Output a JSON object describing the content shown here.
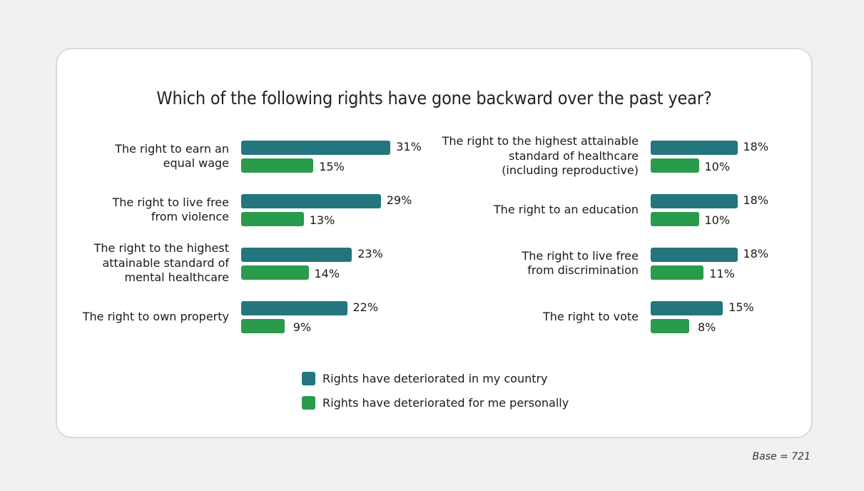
{
  "title": "Which of the following rights have gone backward over the past year?",
  "footnote": "Base = 721",
  "colors": {
    "country": "#23757e",
    "personal": "#2a9b4c",
    "background": "#f0f1f0",
    "card": "#ffffff"
  },
  "legend": [
    {
      "label": "Rights have deteriorated in my country",
      "color": "#23757e"
    },
    {
      "label": "Rights have deteriorated for me personally",
      "color": "#2a9b4c"
    }
  ],
  "columns": [
    {
      "items": [
        {
          "label_lines": [
            "The right to earn an",
            "equal wage"
          ],
          "country": 31,
          "personal": 15,
          "country_label": "31%",
          "personal_label": "15%"
        },
        {
          "label_lines": [
            "The right to live free",
            "from violence"
          ],
          "country": 29,
          "personal": 13,
          "country_label": "29%",
          "personal_label": "13%"
        },
        {
          "label_lines": [
            "The right to the highest",
            "attainable standard of",
            "mental healthcare"
          ],
          "country": 23,
          "personal": 14,
          "country_label": "23%",
          "personal_label": "14%"
        },
        {
          "label_lines": [
            "The right to own property"
          ],
          "country": 22,
          "personal": 9,
          "country_label": "22%",
          "personal_label": "9%"
        }
      ]
    },
    {
      "items": [
        {
          "label_lines": [
            "The right to the highest attainable",
            "standard of healthcare",
            "(including reproductive)"
          ],
          "country": 18,
          "personal": 10,
          "country_label": "18%",
          "personal_label": "10%"
        },
        {
          "label_lines": [
            "The right to an education"
          ],
          "country": 18,
          "personal": 10,
          "country_label": "18%",
          "personal_label": "10%"
        },
        {
          "label_lines": [
            "The right to live free",
            "from discrimination"
          ],
          "country": 18,
          "personal": 11,
          "country_label": "18%",
          "personal_label": "11%"
        },
        {
          "label_lines": [
            "The right to vote"
          ],
          "country": 15,
          "personal": 8,
          "country_label": "15%",
          "personal_label": "8%"
        }
      ]
    }
  ],
  "chart_data": {
    "type": "bar",
    "orientation": "horizontal",
    "title": "Which of the following rights have gone backward over the past year?",
    "xlabel": "",
    "ylabel": "",
    "unit": "%",
    "categories": [
      "The right to earn an equal wage",
      "The right to live free from violence",
      "The right to the highest attainable standard of mental healthcare",
      "The right to own property",
      "The right to the highest attainable standard of healthcare (including reproductive)",
      "The right to an education",
      "The right to live free from discrimination",
      "The right to vote"
    ],
    "series": [
      {
        "name": "Rights have deteriorated in my country",
        "color": "#23757e",
        "values": [
          31,
          29,
          23,
          22,
          18,
          18,
          18,
          15
        ]
      },
      {
        "name": "Rights have deteriorated for me personally",
        "color": "#2a9b4c",
        "values": [
          15,
          13,
          14,
          9,
          10,
          10,
          11,
          8
        ]
      }
    ],
    "grid": false,
    "legend_position": "bottom",
    "annotations": [
      "Base = 721"
    ]
  }
}
